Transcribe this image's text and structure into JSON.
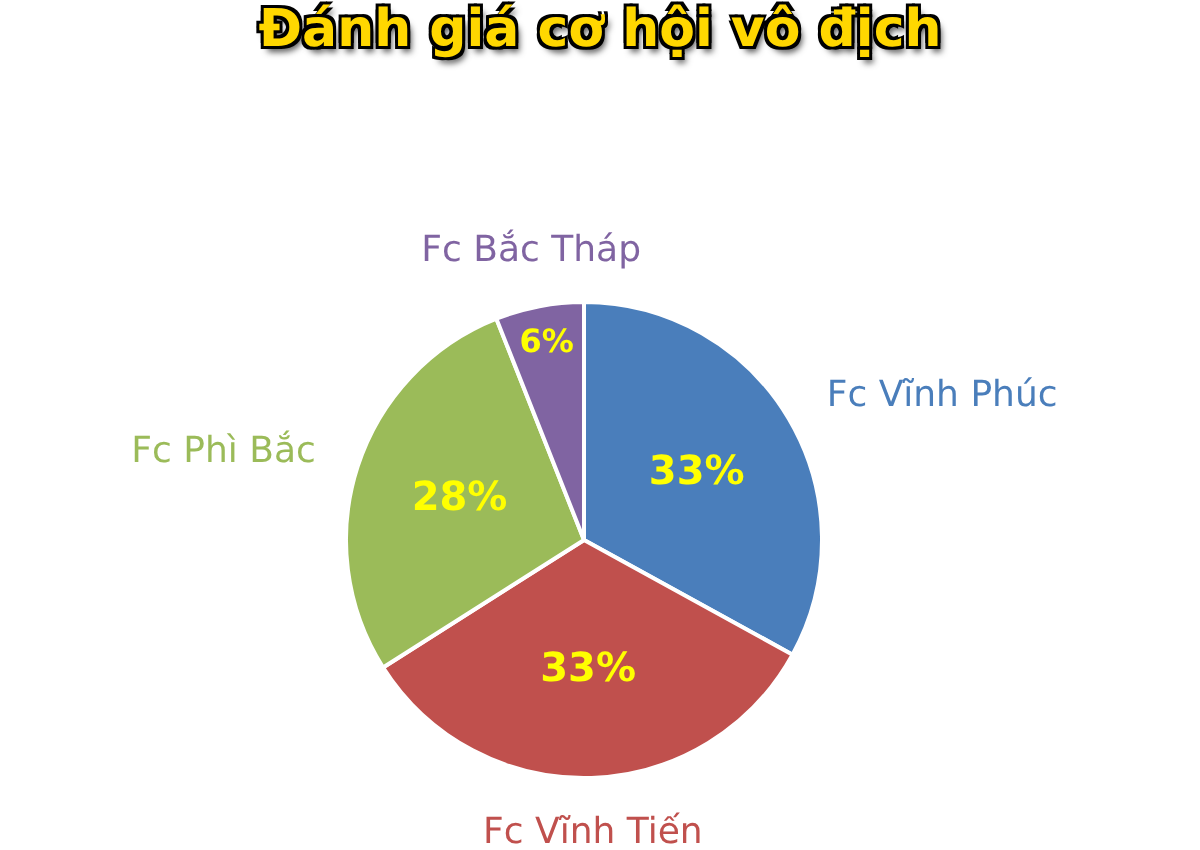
{
  "chart_data": {
    "type": "pie",
    "title": "Đánh giá cơ hội vô địch",
    "categories": [
      "Fc Vĩnh Phúc",
      "Fc Vĩnh Tiến",
      "Fc Phì Bắc",
      "Fc Bắc Tháp"
    ],
    "values": [
      33,
      33,
      28,
      6
    ],
    "colors": [
      "#4a7ebb",
      "#c0504d",
      "#9bbb59",
      "#8064a2"
    ],
    "value_labels": [
      "33%",
      "33%",
      "28%",
      "6%"
    ]
  }
}
